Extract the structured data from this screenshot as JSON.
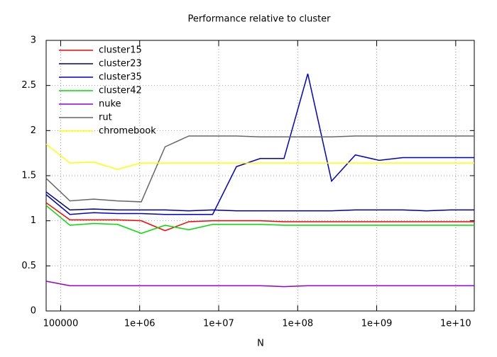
{
  "chart_data": {
    "type": "line",
    "title": "Performance relative to cluster",
    "x_label": "N",
    "x": [
      65536,
      131072,
      262144,
      524288,
      1048576,
      2097152,
      4194304,
      8388608,
      16777216,
      33554432,
      67108864,
      134217728,
      268435456,
      536870912,
      1073741824,
      2147483648,
      4294967296,
      8589934592,
      17179869184
    ],
    "series": [
      {
        "name": "cluster15",
        "color": "#ff0000",
        "values": [
          1.2,
          1.01,
          1.01,
          1.01,
          1.0,
          0.89,
          0.99,
          1.0,
          1.0,
          1.0,
          0.99,
          0.99,
          0.99,
          0.99,
          0.99,
          0.99,
          0.99,
          0.99,
          0.99
        ]
      },
      {
        "name": "cluster23",
        "color": "#000080",
        "values": [
          1.32,
          1.12,
          1.13,
          1.12,
          1.12,
          1.12,
          1.11,
          1.12,
          1.11,
          1.11,
          1.11,
          1.11,
          1.11,
          1.12,
          1.12,
          1.12,
          1.11,
          1.12,
          1.12
        ]
      },
      {
        "name": "cluster35",
        "color": "#0000cc",
        "values": [
          1.29,
          1.07,
          1.09,
          1.08,
          1.08,
          1.07,
          1.07,
          1.07,
          1.6,
          1.69,
          1.69,
          2.63,
          1.44,
          1.73,
          1.67,
          1.7,
          1.7,
          1.7,
          1.7
        ]
      },
      {
        "name": "cluster42",
        "color": "#00dd00",
        "values": [
          1.17,
          0.95,
          0.97,
          0.96,
          0.86,
          0.95,
          0.9,
          0.96,
          0.96,
          0.96,
          0.95,
          0.95,
          0.95,
          0.95,
          0.95,
          0.95,
          0.95,
          0.95,
          0.95
        ]
      },
      {
        "name": "nuke",
        "color": "#9400d3",
        "values": [
          0.33,
          0.28,
          0.28,
          0.28,
          0.28,
          0.28,
          0.28,
          0.28,
          0.28,
          0.28,
          0.27,
          0.28,
          0.28,
          0.28,
          0.28,
          0.28,
          0.28,
          0.28,
          0.28
        ]
      },
      {
        "name": "rut",
        "color": "#666666",
        "values": [
          1.47,
          1.22,
          1.24,
          1.22,
          1.21,
          1.82,
          1.94,
          1.94,
          1.94,
          1.93,
          1.93,
          1.93,
          1.93,
          1.94,
          1.94,
          1.94,
          1.94,
          1.94,
          1.94
        ]
      },
      {
        "name": "chromebook",
        "color": "#ffff00",
        "values": [
          1.85,
          1.64,
          1.65,
          1.57,
          1.64,
          1.64,
          1.64,
          1.64,
          1.64,
          1.64,
          1.64,
          1.64,
          1.64,
          1.64,
          1.64,
          1.64,
          1.64,
          1.64,
          1.64
        ]
      }
    ],
    "xlim": [
      65536,
      17179869184
    ],
    "log_x": true,
    "xticks": [
      100000,
      {
        "value": 1000000,
        "label": "1e+06"
      },
      {
        "value": 10000000,
        "label": "1e+07"
      },
      {
        "value": 100000000,
        "label": "1e+08"
      },
      {
        "value": 1000000000,
        "label": "1e+09"
      },
      {
        "value": 10000000000,
        "label": "1e+10"
      }
    ],
    "ylim": [
      0,
      3
    ],
    "yticks": [
      0,
      0.5,
      1,
      1.5,
      2,
      2.5,
      3
    ],
    "grid": true,
    "legend": "top-left"
  }
}
